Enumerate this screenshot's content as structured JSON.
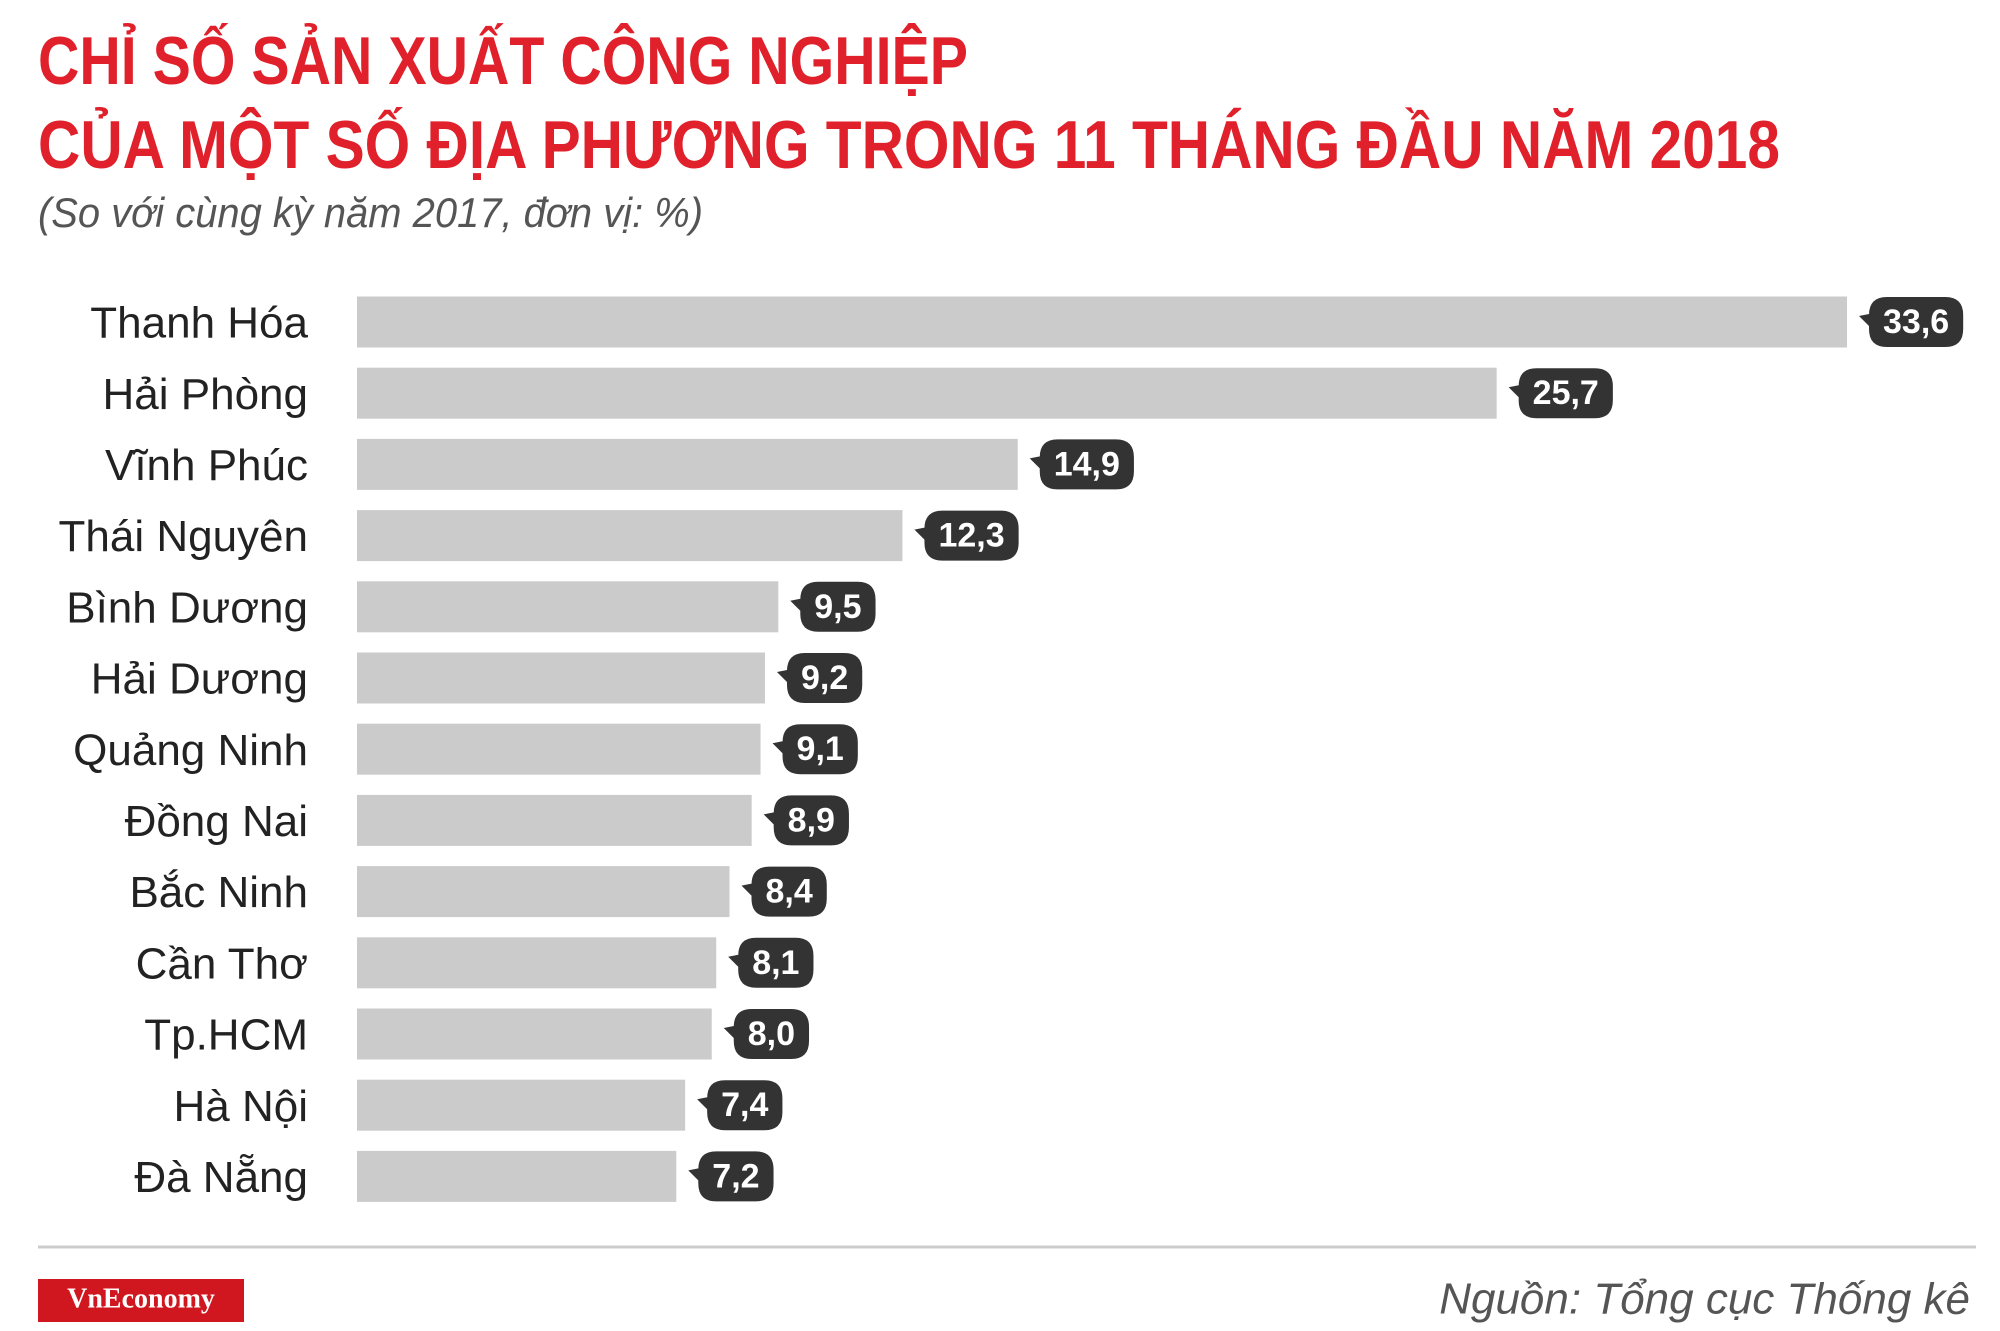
{
  "chart_data": {
    "type": "bar",
    "orientation": "horizontal",
    "title": [
      "CHỈ SỐ SẢN XUẤT CÔNG NGHIỆP",
      "CỦA MỘT SỐ ĐỊA PHƯƠNG TRONG 11 THÁNG ĐẦU NĂM 2018"
    ],
    "subtitle": "(So với cùng kỳ năm 2017, đơn vị: %)",
    "categories": [
      "Thanh Hóa",
      "Hải Phòng",
      "Vĩnh Phúc",
      "Thái Nguyên",
      "Bình Dương",
      "Hải Dương",
      "Quảng Ninh",
      "Đồng Nai",
      "Bắc Ninh",
      "Cần Thơ",
      "Tp.HCM",
      "Hà Nội",
      "Đà Nẵng"
    ],
    "values": [
      33.6,
      25.7,
      14.9,
      12.3,
      9.5,
      9.2,
      9.1,
      8.9,
      8.4,
      8.1,
      8.0,
      7.4,
      7.2
    ],
    "value_labels": [
      "33,6",
      "25,7",
      "14,9",
      "12,3",
      "9,5",
      "9,2",
      "9,1",
      "8,9",
      "8,4",
      "8,1",
      "8,0",
      "7,4",
      "7,2"
    ],
    "color": "#cccbcb",
    "label_color": "#333333",
    "title_color": "#e0202a"
  },
  "footer": {
    "logo": "VnEconomy",
    "source": "Nguồn: Tổng cục Thống kê"
  }
}
